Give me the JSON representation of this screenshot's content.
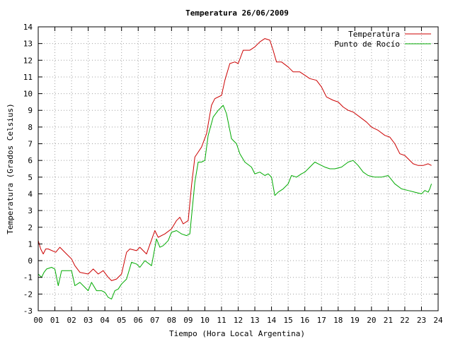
{
  "chart_data": {
    "type": "line",
    "title": "Temperatura 26/06/2009",
    "xlabel": "Tiempo (Hora Local Argentina)",
    "ylabel": "Temperatura (Grados Celsius)",
    "xlim": [
      0,
      24
    ],
    "ylim": [
      -3,
      14
    ],
    "grid": true,
    "legend": "top-right",
    "x_ticks": [
      "00",
      "01",
      "02",
      "03",
      "04",
      "05",
      "06",
      "07",
      "08",
      "09",
      "10",
      "11",
      "12",
      "13",
      "14",
      "15",
      "16",
      "17",
      "18",
      "19",
      "20",
      "21",
      "22",
      "23",
      "24"
    ],
    "y_ticks": [
      -3,
      -2,
      -1,
      0,
      1,
      2,
      3,
      4,
      5,
      6,
      7,
      8,
      9,
      10,
      11,
      12,
      13,
      14
    ],
    "colors": {
      "axes": "#000000",
      "grid": "#a0a0a0"
    },
    "series": [
      {
        "name": "Temperatura",
        "color": "#cc0000",
        "x": [
          0.0,
          0.15,
          0.3,
          0.45,
          0.6,
          1.05,
          1.3,
          1.5,
          1.7,
          2.0,
          2.2,
          2.5,
          3.0,
          3.3,
          3.6,
          3.9,
          4.2,
          4.4,
          4.7,
          5.0,
          5.3,
          5.5,
          5.9,
          6.1,
          6.3,
          6.5,
          7.0,
          7.2,
          7.6,
          8.0,
          8.3,
          8.5,
          8.7,
          9.0,
          9.2,
          9.4,
          9.6,
          9.8,
          10.1,
          10.4,
          10.6,
          11.0,
          11.2,
          11.5,
          11.8,
          12.0,
          12.3,
          12.7,
          13.0,
          13.3,
          13.6,
          13.9,
          14.1,
          14.3,
          14.6,
          15.0,
          15.3,
          15.7,
          16.0,
          16.3,
          16.7,
          17.0,
          17.3,
          17.7,
          18.0,
          18.3,
          18.6,
          18.9,
          19.3,
          19.7,
          20.0,
          20.4,
          20.8,
          21.1,
          21.4,
          21.7,
          22.0,
          22.5,
          22.8,
          23.1,
          23.4,
          23.6
        ],
        "y": [
          1.2,
          0.7,
          0.4,
          0.7,
          0.7,
          0.5,
          0.8,
          0.6,
          0.4,
          0.1,
          -0.3,
          -0.7,
          -0.8,
          -0.5,
          -0.8,
          -0.6,
          -1.0,
          -1.2,
          -1.1,
          -0.8,
          0.5,
          0.7,
          0.6,
          0.8,
          0.6,
          0.4,
          1.8,
          1.4,
          1.6,
          1.9,
          2.4,
          2.6,
          2.2,
          2.4,
          4.5,
          6.2,
          6.5,
          6.8,
          7.6,
          9.3,
          9.7,
          9.9,
          10.8,
          11.8,
          11.9,
          11.8,
          12.6,
          12.6,
          12.8,
          13.1,
          13.3,
          13.2,
          12.6,
          11.9,
          11.9,
          11.6,
          11.3,
          11.3,
          11.1,
          10.9,
          10.8,
          10.4,
          9.8,
          9.6,
          9.5,
          9.2,
          9.0,
          8.9,
          8.6,
          8.3,
          8.0,
          7.8,
          7.5,
          7.4,
          7.0,
          6.4,
          6.3,
          5.8,
          5.7,
          5.7,
          5.8,
          5.7
        ]
      },
      {
        "name": "Punto de Rocío",
        "color": "#00aa00",
        "x": [
          0.0,
          0.2,
          0.35,
          0.5,
          0.8,
          1.0,
          1.2,
          1.4,
          1.7,
          2.0,
          2.2,
          2.5,
          2.8,
          3.0,
          3.2,
          3.5,
          3.8,
          4.0,
          4.2,
          4.4,
          4.6,
          4.8,
          5.0,
          5.3,
          5.6,
          5.9,
          6.1,
          6.4,
          6.8,
          7.1,
          7.3,
          7.5,
          7.8,
          8.0,
          8.3,
          8.6,
          8.9,
          9.1,
          9.4,
          9.6,
          9.8,
          10.0,
          10.2,
          10.5,
          10.8,
          11.0,
          11.1,
          11.3,
          11.6,
          11.9,
          12.1,
          12.4,
          12.8,
          13.0,
          13.3,
          13.6,
          13.8,
          14.0,
          14.2,
          14.4,
          14.7,
          15.0,
          15.2,
          15.5,
          15.8,
          16.0,
          16.3,
          16.6,
          16.8,
          17.2,
          17.5,
          17.8,
          18.2,
          18.6,
          18.9,
          19.2,
          19.5,
          19.8,
          20.2,
          20.6,
          21.0,
          21.4,
          21.8,
          22.2,
          22.6,
          23.0,
          23.2,
          23.4,
          23.5,
          23.6
        ],
        "y": [
          -0.8,
          -1.0,
          -0.7,
          -0.5,
          -0.4,
          -0.5,
          -1.5,
          -0.6,
          -0.6,
          -0.6,
          -1.5,
          -1.3,
          -1.6,
          -1.8,
          -1.3,
          -1.8,
          -1.8,
          -1.9,
          -2.2,
          -2.3,
          -1.8,
          -1.7,
          -1.4,
          -1.1,
          -0.1,
          -0.2,
          -0.4,
          0.0,
          -0.3,
          1.3,
          0.8,
          0.9,
          1.2,
          1.7,
          1.8,
          1.6,
          1.5,
          1.6,
          4.7,
          5.9,
          5.9,
          6.0,
          7.5,
          8.6,
          9.0,
          9.2,
          9.3,
          8.8,
          7.3,
          7.0,
          6.4,
          5.9,
          5.6,
          5.2,
          5.3,
          5.1,
          5.2,
          5.0,
          3.9,
          4.1,
          4.3,
          4.6,
          5.1,
          5.0,
          5.2,
          5.3,
          5.6,
          5.9,
          5.8,
          5.6,
          5.5,
          5.5,
          5.6,
          5.9,
          6.0,
          5.7,
          5.3,
          5.1,
          5.0,
          5.0,
          5.1,
          4.6,
          4.3,
          4.2,
          4.1,
          4.0,
          4.2,
          4.1,
          4.3,
          4.6
        ]
      }
    ]
  }
}
